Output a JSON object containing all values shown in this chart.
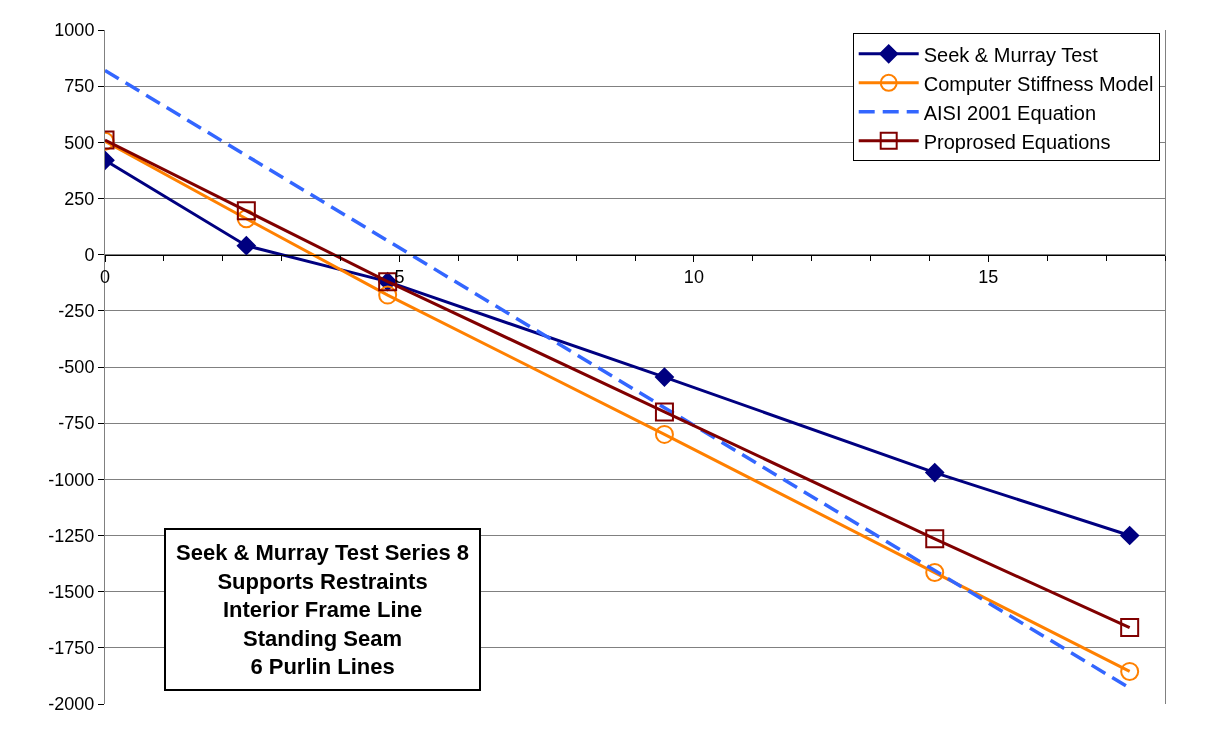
{
  "chart_data": {
    "type": "line",
    "x": [
      0,
      2.4,
      4.8,
      9.5,
      14.09,
      17.4
    ],
    "series": [
      {
        "name": "Seek & Murray Test",
        "color": "#000080",
        "marker": "diamond",
        "line_style": "solid",
        "values": [
          420,
          40,
          -120,
          -545,
          -970,
          -1250
        ]
      },
      {
        "name": "Computer Stiffness Model",
        "color": "#ff8000",
        "marker": "circle",
        "line_style": "solid",
        "values": [
          505,
          160,
          -180,
          -800,
          -1415,
          -1855
        ]
      },
      {
        "name": "AISI 2001 Equation",
        "color": "#3366ff",
        "marker": "none",
        "line_style": "dashed",
        "values": [
          820,
          441,
          62,
          -681,
          -1406,
          -1929
        ]
      },
      {
        "name": "Proprosed Equations",
        "color": "#800000",
        "marker": "square",
        "line_style": "solid",
        "values": [
          510,
          195,
          -120,
          -700,
          -1265,
          -1660
        ]
      }
    ],
    "xlim": [
      0,
      18
    ],
    "xticks": [
      0,
      5,
      10,
      15
    ],
    "ylim": [
      -2000,
      1000
    ],
    "yticks": [
      -2000,
      -1750,
      -1500,
      -1250,
      -1000,
      -750,
      -500,
      -250,
      0,
      250,
      500,
      750,
      1000
    ],
    "grid": "y",
    "legend": "top right",
    "annotations": [
      "Seek & Murray Test Series 8\nSupports Restraints\nInterior Frame Line\nStanding Seam\n6 Purlin Lines"
    ]
  }
}
